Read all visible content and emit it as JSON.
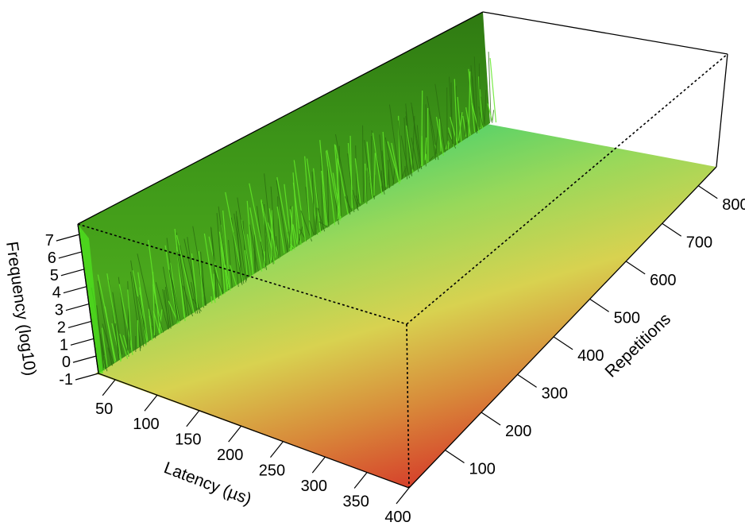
{
  "chart_data": {
    "type": "surface3d",
    "title": "",
    "xlabel": "Latency (µs)",
    "ylabel": "Repetitions",
    "zlabel": "Frequency (log10)",
    "x_ticks": [
      "50",
      "100",
      "150",
      "200",
      "250",
      "300",
      "350",
      "400"
    ],
    "y_ticks": [
      "100",
      "200",
      "300",
      "400",
      "500",
      "600",
      "700",
      "800"
    ],
    "z_ticks": [
      "-1",
      "0",
      "1",
      "2",
      "3",
      "4",
      "5",
      "6",
      "7"
    ],
    "xlim": [
      30,
      400
    ],
    "ylim": [
      0,
      850
    ],
    "zlim": [
      -1,
      8
    ],
    "description_colors": {
      "high": "#3a8f1a",
      "peak": "#55e020",
      "floor_low": "#d63a2a",
      "floor_mid": "#d8d250",
      "floor_high": "#6ad660"
    }
  }
}
